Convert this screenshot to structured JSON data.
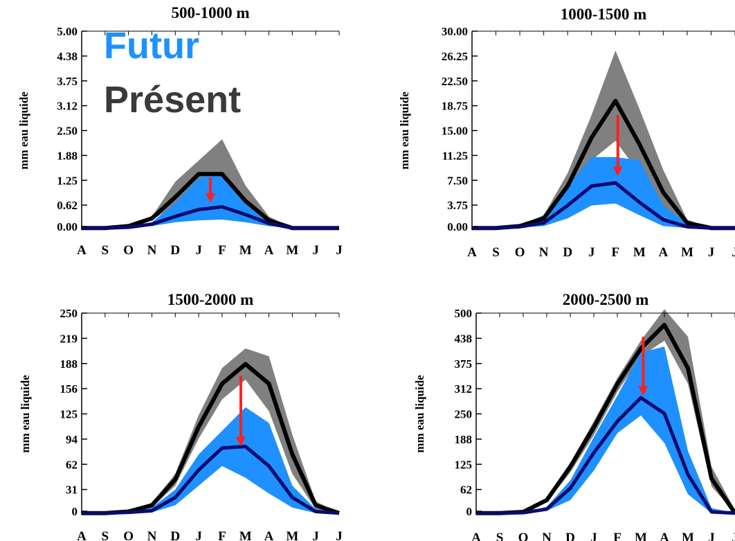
{
  "colors": {
    "present_band": "#808080",
    "present_line": "#000000",
    "future_band": "#1e90ff",
    "future_line": "#0a0a6e",
    "arrow": "#ff2020",
    "legend_futur": "#1e90ff",
    "legend_present": "#3a3a3a"
  },
  "legend": {
    "futur": "Futur",
    "present": "Présent"
  },
  "chart_data": [
    {
      "type": "area",
      "title": "500-1000 m",
      "ylabel": "mm eau liquide",
      "categories": [
        "A",
        "S",
        "O",
        "N",
        "D",
        "J",
        "F",
        "M",
        "A",
        "M",
        "J",
        "J"
      ],
      "yticks": [
        "5.00",
        "4.38",
        "3.75",
        "3.12",
        "2.50",
        "1.88",
        "1.25",
        "0.62",
        "0.00"
      ],
      "ylim": [
        -0.15,
        5.0
      ],
      "series": [
        {
          "name": "Présent",
          "kind": "line",
          "values": [
            -0.1,
            -0.1,
            -0.05,
            0.15,
            0.7,
            1.3,
            1.3,
            0.6,
            0.1,
            -0.1,
            -0.1,
            -0.1
          ]
        },
        {
          "kind": "band",
          "upper": [
            -0.1,
            -0.1,
            -0.05,
            0.2,
            1.1,
            1.65,
            2.2,
            1.0,
            0.2,
            -0.1,
            -0.1,
            -0.1
          ],
          "lower": [
            -0.1,
            -0.1,
            -0.05,
            0.1,
            0.5,
            0.85,
            0.65,
            0.3,
            0.05,
            -0.1,
            -0.1,
            -0.1
          ]
        },
        {
          "name": "Futur",
          "kind": "line",
          "values": [
            -0.1,
            -0.1,
            -0.08,
            0.0,
            0.2,
            0.38,
            0.45,
            0.25,
            0.02,
            -0.1,
            -0.1,
            -0.1
          ]
        },
        {
          "kind": "band",
          "upper": [
            -0.1,
            -0.1,
            -0.07,
            0.05,
            0.55,
            1.2,
            1.3,
            0.55,
            0.1,
            -0.1,
            -0.1,
            -0.1
          ],
          "lower": [
            -0.1,
            -0.1,
            -0.09,
            -0.05,
            0.05,
            0.1,
            0.12,
            0.05,
            -0.05,
            -0.1,
            -0.1,
            -0.1
          ]
        }
      ],
      "arrow": {
        "x": 5.5,
        "from": 1.2,
        "to": 0.55
      }
    },
    {
      "type": "area",
      "title": "1000-1500 m",
      "ylabel": "mm eau liquide",
      "categories": [
        "A",
        "S",
        "O",
        "N",
        "D",
        "J",
        "F",
        "M",
        "A",
        "M",
        "J",
        "J"
      ],
      "yticks": [
        "30.00",
        "26.25",
        "22.50",
        "18.75",
        "15.00",
        "11.25",
        "7.50",
        "3.75",
        "0.00"
      ],
      "ylim": [
        -0.8,
        30.0
      ],
      "series": [
        {
          "name": "Présent",
          "kind": "line",
          "values": [
            -0.5,
            -0.5,
            -0.2,
            1.0,
            6.0,
            13.5,
            19.2,
            12.5,
            5.0,
            0.3,
            -0.5,
            -0.5
          ]
        },
        {
          "kind": "band",
          "upper": [
            -0.5,
            -0.5,
            -0.1,
            1.5,
            8.0,
            17.0,
            27.0,
            18.0,
            8.5,
            0.8,
            -0.5,
            -0.5
          ],
          "lower": [
            -0.5,
            -0.5,
            -0.3,
            0.5,
            4.0,
            10.0,
            13.0,
            8.0,
            2.5,
            0.0,
            -0.5,
            -0.5
          ]
        },
        {
          "name": "Futur",
          "kind": "line",
          "values": [
            -0.5,
            -0.5,
            -0.3,
            0.3,
            3.0,
            6.0,
            6.5,
            3.5,
            0.8,
            -0.3,
            -0.5,
            -0.5
          ]
        },
        {
          "kind": "band",
          "upper": [
            -0.5,
            -0.5,
            -0.2,
            1.5,
            6.0,
            10.5,
            10.5,
            10.0,
            3.0,
            0.2,
            -0.5,
            -0.5
          ],
          "lower": [
            -0.5,
            -0.5,
            -0.4,
            -0.2,
            1.0,
            3.0,
            3.3,
            1.5,
            -0.2,
            -0.5,
            -0.5,
            -0.5
          ]
        }
      ],
      "arrow": {
        "x": 6.1,
        "from": 17.0,
        "to": 7.5
      }
    },
    {
      "type": "area",
      "title": "1500-2000 m",
      "ylabel": "mm eau liquide",
      "categories": [
        "A",
        "S",
        "O",
        "N",
        "D",
        "J",
        "F",
        "M",
        "A",
        "M",
        "J",
        "J"
      ],
      "yticks": [
        "250",
        "219",
        "188",
        "156",
        "125",
        "94",
        "62",
        "31",
        "0"
      ],
      "ylim": [
        -7,
        250
      ],
      "series": [
        {
          "name": "Présent",
          "kind": "line",
          "values": [
            -5,
            -5,
            -3,
            5,
            38,
            105,
            160,
            185,
            160,
            70,
            5,
            -5
          ]
        },
        {
          "kind": "band",
          "upper": [
            -5,
            -5,
            -2,
            8,
            45,
            120,
            180,
            205,
            195,
            95,
            10,
            -5
          ],
          "lower": [
            -5,
            -5,
            -4,
            2,
            30,
            90,
            140,
            165,
            125,
            45,
            0,
            -5
          ]
        },
        {
          "name": "Futur",
          "kind": "line",
          "values": [
            -5,
            -5,
            -4,
            -2,
            15,
            50,
            78,
            80,
            55,
            15,
            -3,
            -5
          ]
        },
        {
          "kind": "band",
          "upper": [
            -5,
            -5,
            -3,
            2,
            25,
            70,
            100,
            130,
            110,
            30,
            0,
            -5
          ],
          "lower": [
            -5,
            -5,
            -5,
            -4,
            5,
            30,
            55,
            40,
            20,
            2,
            -5,
            -5
          ]
        }
      ],
      "arrow": {
        "x": 6.8,
        "from": 170,
        "to": 80
      }
    },
    {
      "type": "area",
      "title": "2000-2500 m",
      "ylabel": "mm eau liquide",
      "categories": [
        "A",
        "S",
        "O",
        "N",
        "D",
        "J",
        "F",
        "M",
        "A",
        "M",
        "J",
        "J"
      ],
      "yticks": [
        "500",
        "438",
        "375",
        "312",
        "250",
        "188",
        "125",
        "62",
        "0"
      ],
      "ylim": [
        -12,
        500
      ],
      "series": [
        {
          "name": "Présent",
          "kind": "line",
          "values": [
            -8,
            -8,
            -5,
            25,
            110,
            210,
            320,
            410,
            470,
            360,
            80,
            -8
          ]
        },
        {
          "kind": "band",
          "upper": [
            -8,
            -8,
            -3,
            30,
            120,
            225,
            335,
            430,
            510,
            440,
            110,
            0
          ],
          "lower": [
            -8,
            -8,
            -6,
            20,
            95,
            190,
            300,
            390,
            430,
            320,
            60,
            -8
          ]
        },
        {
          "name": "Futur",
          "kind": "line",
          "values": [
            -8,
            -8,
            -7,
            2,
            55,
            145,
            225,
            285,
            245,
            90,
            -5,
            -8
          ]
        },
        {
          "kind": "band",
          "upper": [
            -8,
            -8,
            -6,
            8,
            75,
            185,
            290,
            400,
            415,
            150,
            5,
            -8
          ],
          "lower": [
            -8,
            -8,
            -8,
            -2,
            25,
            100,
            195,
            240,
            170,
            40,
            -8,
            -8
          ]
        }
      ],
      "arrow": {
        "x": 7.1,
        "from": 440,
        "to": 290
      }
    }
  ]
}
